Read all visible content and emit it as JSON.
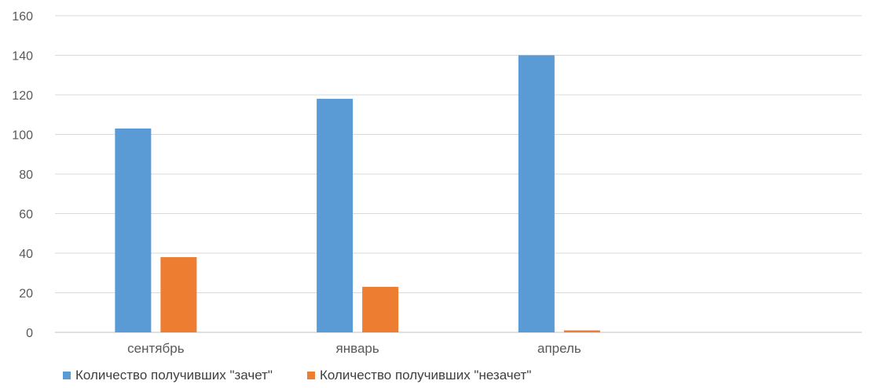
{
  "chart_data": {
    "type": "bar",
    "categories": [
      "сентябрь",
      "январь",
      "апрель",
      ""
    ],
    "series": [
      {
        "name": "Количество получивших \"зачет\"",
        "color": "#5b9bd5",
        "values": [
          103,
          118,
          140,
          null
        ]
      },
      {
        "name": "Количество получивших \"незачет\"",
        "color": "#ed7d31",
        "values": [
          38,
          23,
          1,
          null
        ]
      }
    ],
    "ylim": [
      0,
      160
    ],
    "yticks": [
      0,
      20,
      40,
      60,
      80,
      100,
      120,
      140,
      160
    ],
    "grid": true,
    "legend_position": "bottom",
    "title": "",
    "xlabel": "",
    "ylabel": ""
  }
}
